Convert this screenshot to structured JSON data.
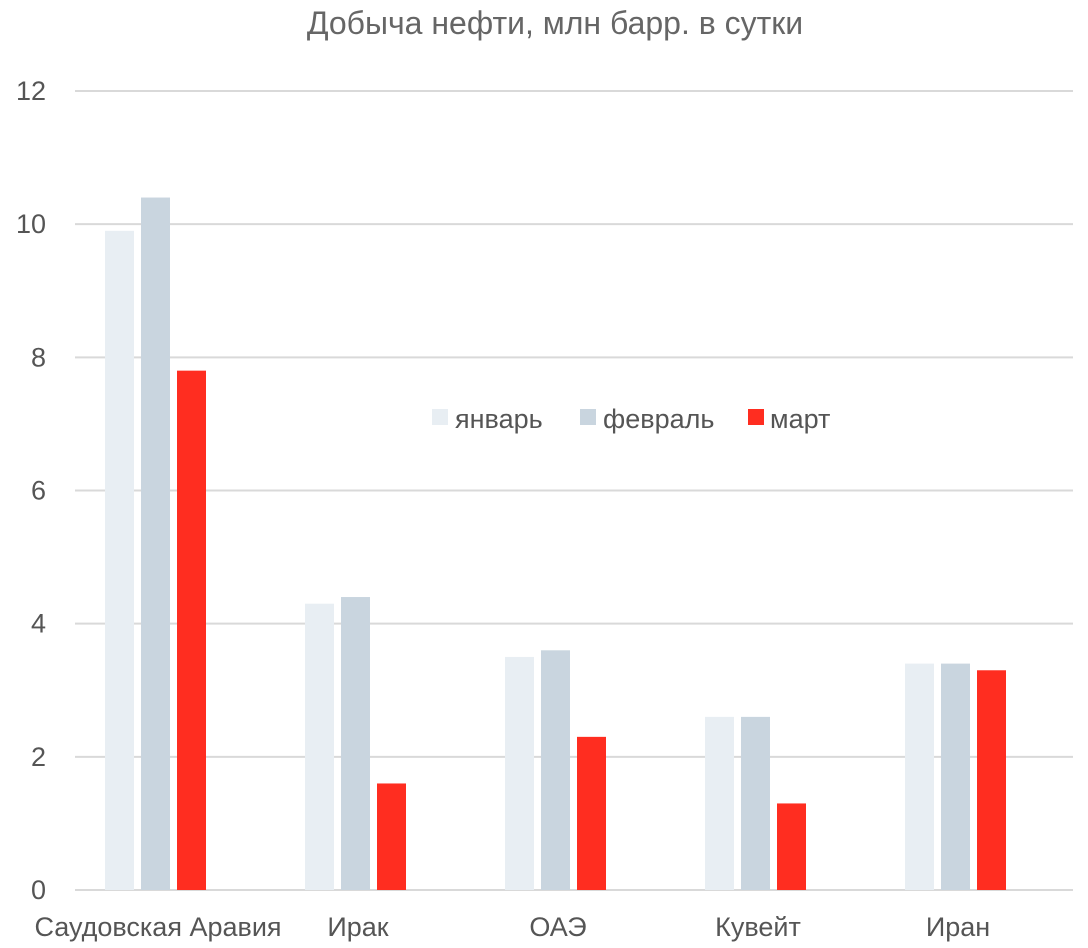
{
  "chart_data": {
    "type": "bar",
    "title": "Добыча нефти, млн барр. в сутки",
    "xlabel": "",
    "ylabel": "",
    "categories": [
      "Саудовская Аравия",
      "Ирак",
      "ОАЭ",
      "Кувейт",
      "Иран"
    ],
    "series": [
      {
        "name": "январь",
        "values": [
          9.9,
          4.3,
          3.5,
          2.6,
          3.4
        ],
        "color": "#E8EEF3"
      },
      {
        "name": "февраль",
        "values": [
          10.4,
          4.4,
          3.6,
          2.6,
          3.4
        ],
        "color": "#C9D5DF"
      },
      {
        "name": "март",
        "values": [
          7.8,
          1.6,
          2.3,
          1.3,
          3.3
        ],
        "color": "#FF2D20"
      }
    ],
    "ylim": [
      0,
      12
    ],
    "yticks": [
      0,
      2,
      4,
      6,
      8,
      10,
      12
    ],
    "grid": true,
    "legend_position": "center"
  }
}
